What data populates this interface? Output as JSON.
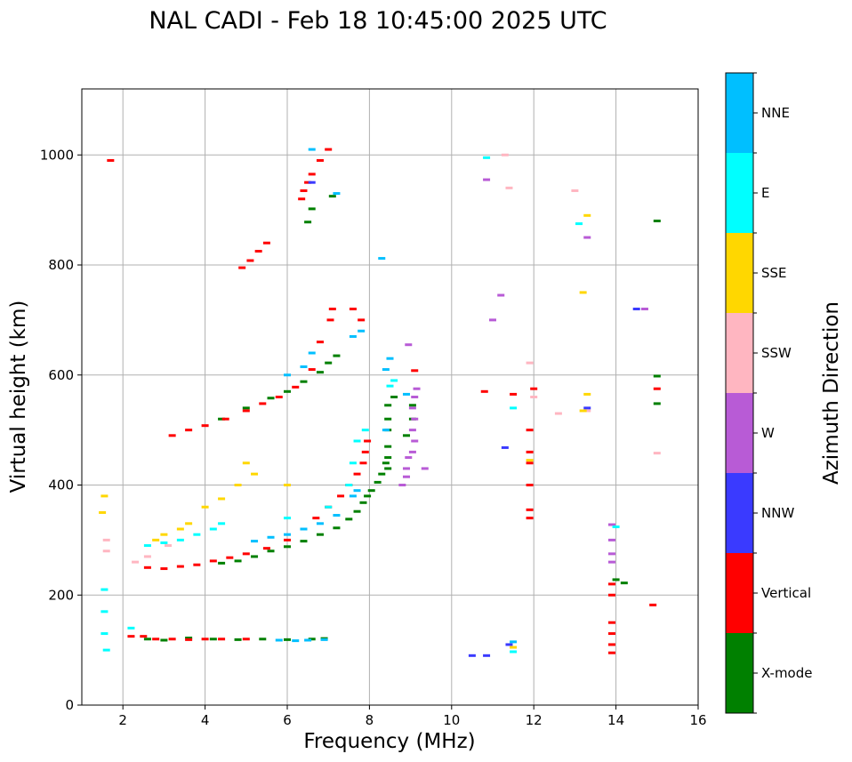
{
  "chart_data": {
    "type": "scatter",
    "title": "NAL CADI - Feb 18 10:45:00 2025 UTC",
    "xlabel": "Frequency (MHz)",
    "ylabel": "Virtual height (km)",
    "xlim": [
      1,
      16
    ],
    "ylim": [
      0,
      1120
    ],
    "xticks": [
      2,
      4,
      6,
      8,
      10,
      12,
      14,
      16
    ],
    "yticks": [
      0,
      200,
      400,
      600,
      800,
      1000
    ],
    "grid": true,
    "colorbar": {
      "label": "Azimuth Direction",
      "categories": [
        {
          "name": "X-mode",
          "color": "#008000"
        },
        {
          "name": "Vertical",
          "color": "#ff0000"
        },
        {
          "name": "NNW",
          "color": "#3a3aff"
        },
        {
          "name": "W",
          "color": "#b85bd6"
        },
        {
          "name": "SSW",
          "color": "#ffb6c1"
        },
        {
          "name": "SSE",
          "color": "#ffd700"
        },
        {
          "name": "E",
          "color": "#00ffff"
        },
        {
          "name": "NNE",
          "color": "#00bfff"
        }
      ]
    },
    "series": [
      {
        "name": "X-mode",
        "color": "#008000",
        "points": [
          [
            2.6,
            120
          ],
          [
            3.0,
            118
          ],
          [
            3.6,
            122
          ],
          [
            4.2,
            120
          ],
          [
            4.8,
            119
          ],
          [
            5.4,
            120
          ],
          [
            6.0,
            119
          ],
          [
            6.6,
            120
          ],
          [
            6.9,
            121
          ],
          [
            4.4,
            258
          ],
          [
            4.8,
            262
          ],
          [
            5.2,
            270
          ],
          [
            5.6,
            280
          ],
          [
            6.0,
            288
          ],
          [
            6.4,
            298
          ],
          [
            6.8,
            310
          ],
          [
            7.2,
            322
          ],
          [
            7.5,
            338
          ],
          [
            7.7,
            352
          ],
          [
            7.85,
            368
          ],
          [
            7.95,
            380
          ],
          [
            8.05,
            390
          ],
          [
            8.2,
            405
          ],
          [
            8.3,
            420
          ],
          [
            8.4,
            440
          ],
          [
            4.4,
            520
          ],
          [
            5.0,
            540
          ],
          [
            5.6,
            558
          ],
          [
            6.0,
            570
          ],
          [
            6.4,
            588
          ],
          [
            6.8,
            605
          ],
          [
            7.0,
            622
          ],
          [
            7.2,
            635
          ],
          [
            8.45,
            430
          ],
          [
            8.45,
            450
          ],
          [
            8.45,
            470
          ],
          [
            8.45,
            500
          ],
          [
            8.45,
            520
          ],
          [
            8.45,
            545
          ],
          [
            8.6,
            560
          ],
          [
            8.9,
            490
          ],
          [
            9.05,
            520
          ],
          [
            9.05,
            545
          ],
          [
            14.0,
            228
          ],
          [
            14.2,
            222
          ],
          [
            15.0,
            548
          ],
          [
            15.0,
            598
          ],
          [
            15.0,
            880
          ],
          [
            6.5,
            878
          ],
          [
            6.6,
            902
          ],
          [
            7.1,
            925
          ]
        ]
      },
      {
        "name": "Vertical",
        "color": "#ff0000",
        "points": [
          [
            1.7,
            990
          ],
          [
            2.2,
            125
          ],
          [
            2.5,
            125
          ],
          [
            2.8,
            120
          ],
          [
            3.2,
            120
          ],
          [
            3.6,
            119
          ],
          [
            4.0,
            120
          ],
          [
            4.4,
            120
          ],
          [
            5.0,
            120
          ],
          [
            2.6,
            250
          ],
          [
            3.0,
            248
          ],
          [
            3.4,
            252
          ],
          [
            3.8,
            255
          ],
          [
            4.2,
            262
          ],
          [
            4.6,
            268
          ],
          [
            5.0,
            275
          ],
          [
            5.5,
            285
          ],
          [
            6.0,
            300
          ],
          [
            6.4,
            320
          ],
          [
            6.7,
            340
          ],
          [
            7.0,
            360
          ],
          [
            7.3,
            380
          ],
          [
            7.5,
            400
          ],
          [
            7.7,
            420
          ],
          [
            7.85,
            440
          ],
          [
            3.2,
            490
          ],
          [
            3.6,
            500
          ],
          [
            4.0,
            508
          ],
          [
            4.5,
            520
          ],
          [
            5.0,
            535
          ],
          [
            5.4,
            548
          ],
          [
            5.8,
            560
          ],
          [
            6.2,
            578
          ],
          [
            6.6,
            610
          ],
          [
            6.8,
            660
          ],
          [
            7.05,
            700
          ],
          [
            7.1,
            720
          ],
          [
            7.6,
            720
          ],
          [
            7.8,
            700
          ],
          [
            7.9,
            460
          ],
          [
            7.95,
            480
          ],
          [
            4.9,
            795
          ],
          [
            5.1,
            808
          ],
          [
            5.3,
            825
          ],
          [
            5.5,
            840
          ],
          [
            6.5,
            950
          ],
          [
            6.6,
            965
          ],
          [
            6.8,
            990
          ],
          [
            7.0,
            1010
          ],
          [
            6.35,
            920
          ],
          [
            6.4,
            935
          ],
          [
            13.9,
            95
          ],
          [
            13.9,
            110
          ],
          [
            13.9,
            130
          ],
          [
            13.9,
            150
          ],
          [
            13.9,
            200
          ],
          [
            13.9,
            220
          ],
          [
            11.9,
            340
          ],
          [
            11.9,
            355
          ],
          [
            11.9,
            400
          ],
          [
            11.9,
            440
          ],
          [
            11.9,
            460
          ],
          [
            11.9,
            500
          ],
          [
            11.5,
            565
          ],
          [
            10.8,
            570
          ],
          [
            12.0,
            575
          ],
          [
            15.0,
            575
          ],
          [
            14.9,
            182
          ],
          [
            9.1,
            608
          ]
        ]
      },
      {
        "name": "NNW",
        "color": "#3a3aff",
        "points": [
          [
            10.5,
            90
          ],
          [
            10.85,
            90
          ],
          [
            11.4,
            110
          ],
          [
            11.3,
            468
          ],
          [
            13.3,
            540
          ],
          [
            14.5,
            720
          ],
          [
            6.6,
            950
          ]
        ]
      },
      {
        "name": "W",
        "color": "#b85bd6",
        "points": [
          [
            8.8,
            400
          ],
          [
            8.9,
            415
          ],
          [
            8.9,
            430
          ],
          [
            8.95,
            450
          ],
          [
            9.05,
            460
          ],
          [
            9.1,
            480
          ],
          [
            9.05,
            500
          ],
          [
            9.1,
            520
          ],
          [
            9.05,
            540
          ],
          [
            9.1,
            560
          ],
          [
            9.15,
            575
          ],
          [
            9.35,
            430
          ],
          [
            8.95,
            655
          ],
          [
            13.9,
            260
          ],
          [
            13.9,
            275
          ],
          [
            13.9,
            300
          ],
          [
            13.9,
            328
          ],
          [
            11.0,
            700
          ],
          [
            11.2,
            745
          ],
          [
            13.3,
            850
          ],
          [
            10.85,
            955
          ],
          [
            14.7,
            720
          ]
        ]
      },
      {
        "name": "SSW",
        "color": "#ffb6c1",
        "points": [
          [
            1.6,
            280
          ],
          [
            1.6,
            300
          ],
          [
            2.3,
            260
          ],
          [
            2.6,
            270
          ],
          [
            3.1,
            290
          ],
          [
            11.3,
            1000
          ],
          [
            11.4,
            940
          ],
          [
            12.0,
            560
          ],
          [
            12.6,
            530
          ],
          [
            13.0,
            935
          ],
          [
            15.0,
            458
          ],
          [
            13.3,
            535
          ],
          [
            11.9,
            622
          ]
        ]
      },
      {
        "name": "SSE",
        "color": "#ffd700",
        "points": [
          [
            1.5,
            350
          ],
          [
            1.55,
            380
          ],
          [
            2.8,
            300
          ],
          [
            3.0,
            310
          ],
          [
            3.4,
            320
          ],
          [
            3.6,
            330
          ],
          [
            4.0,
            360
          ],
          [
            4.4,
            375
          ],
          [
            4.8,
            400
          ],
          [
            5.0,
            440
          ],
          [
            5.2,
            420
          ],
          [
            6.0,
            400
          ],
          [
            11.5,
            105
          ],
          [
            11.9,
            445
          ],
          [
            13.2,
            750
          ],
          [
            13.3,
            890
          ],
          [
            13.3,
            565
          ],
          [
            13.2,
            535
          ]
        ]
      },
      {
        "name": "E",
        "color": "#00ffff",
        "points": [
          [
            1.55,
            130
          ],
          [
            1.55,
            170
          ],
          [
            1.55,
            210
          ],
          [
            1.6,
            100
          ],
          [
            2.2,
            140
          ],
          [
            2.6,
            290
          ],
          [
            3.0,
            295
          ],
          [
            3.4,
            300
          ],
          [
            3.8,
            310
          ],
          [
            4.2,
            320
          ],
          [
            4.4,
            330
          ],
          [
            6.0,
            340
          ],
          [
            7.0,
            360
          ],
          [
            7.5,
            400
          ],
          [
            7.6,
            440
          ],
          [
            7.7,
            480
          ],
          [
            7.9,
            500
          ],
          [
            8.5,
            580
          ],
          [
            8.6,
            590
          ],
          [
            11.5,
            540
          ],
          [
            13.1,
            875
          ],
          [
            10.85,
            995
          ],
          [
            11.5,
            97
          ],
          [
            14.0,
            324
          ]
        ]
      },
      {
        "name": "NNE",
        "color": "#00bfff",
        "points": [
          [
            5.8,
            118
          ],
          [
            6.2,
            117
          ],
          [
            6.5,
            118
          ],
          [
            6.9,
            119
          ],
          [
            5.2,
            298
          ],
          [
            5.6,
            305
          ],
          [
            6.0,
            310
          ],
          [
            6.4,
            320
          ],
          [
            6.8,
            330
          ],
          [
            7.2,
            345
          ],
          [
            7.6,
            380
          ],
          [
            7.7,
            390
          ],
          [
            6.0,
            600
          ],
          [
            6.4,
            615
          ],
          [
            6.6,
            640
          ],
          [
            7.6,
            670
          ],
          [
            7.8,
            680
          ],
          [
            8.4,
            500
          ],
          [
            8.5,
            630
          ],
          [
            8.4,
            610
          ],
          [
            8.9,
            565
          ],
          [
            8.3,
            812
          ],
          [
            6.6,
            1010
          ],
          [
            11.5,
            115
          ],
          [
            7.2,
            930
          ]
        ]
      }
    ]
  }
}
